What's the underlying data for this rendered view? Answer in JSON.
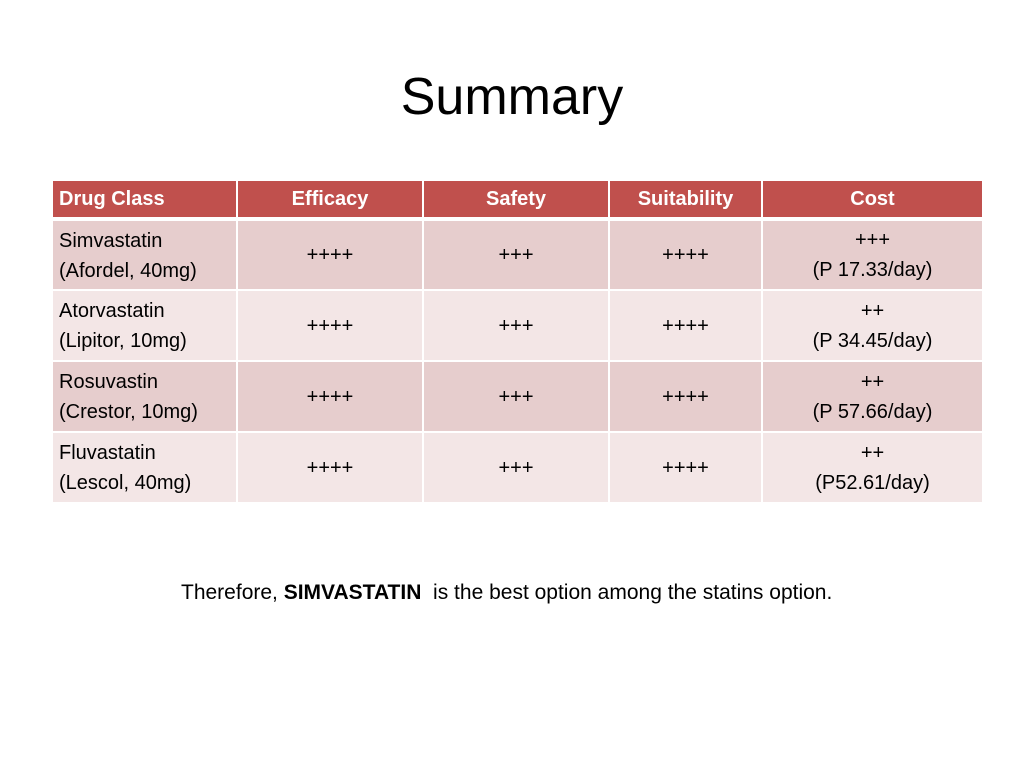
{
  "title": "Summary",
  "table": {
    "headers": [
      "Drug Class",
      "Efficacy",
      "Safety",
      "Suitability",
      "Cost"
    ],
    "rows": [
      {
        "drug_name": "Simvastatin",
        "drug_detail": "(Afordel, 40mg)",
        "efficacy": "++++",
        "safety": "+++",
        "suitability": "++++",
        "cost_rating": "+++",
        "cost_price": "(P 17.33/day)"
      },
      {
        "drug_name": "Atorvastatin",
        "drug_detail": "(Lipitor, 10mg)",
        "efficacy": "++++",
        "safety": "+++",
        "suitability": "++++",
        "cost_rating": "++",
        "cost_price": "(P 34.45/day)"
      },
      {
        "drug_name": "Rosuvastin",
        "drug_detail": "(Crestor, 10mg)",
        "efficacy": "++++",
        "safety": "+++",
        "suitability": "++++",
        "cost_rating": "++",
        "cost_price": "(P 57.66/day)"
      },
      {
        "drug_name": "Fluvastatin",
        "drug_detail": "(Lescol, 40mg)",
        "efficacy": "++++",
        "safety": "+++",
        "suitability": "++++",
        "cost_rating": "++",
        "cost_price": "(P52.61/day)"
      }
    ]
  },
  "conclusion": {
    "prefix": "Therefore, ",
    "emphasis": "SIMVASTATIN",
    "suffix": "  is the best option among the statins option."
  },
  "colors": {
    "header_bg": "#c0504d",
    "row_dark": "#e6cdcd",
    "row_light": "#f3e6e6"
  }
}
